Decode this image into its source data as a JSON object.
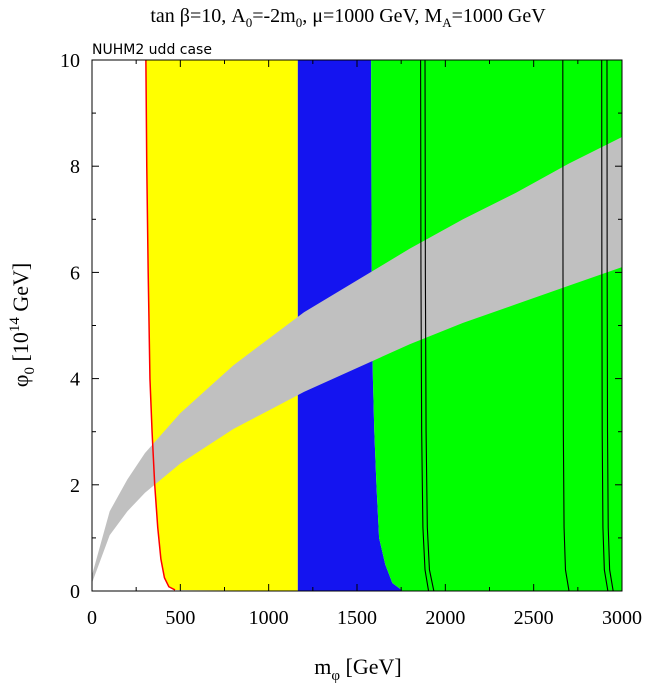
{
  "chart_data": {
    "type": "area",
    "title": "tan β=10, A0=-2m0, μ=1000 GeV, MA=1000 GeV",
    "title_parts": {
      "tan": "tan ",
      "beta": "β",
      "a0_lead": "=10, A",
      "a0_sub": "0",
      "a0_val": "=-2m",
      "m0_sub": "0",
      "mu_lead": ", ",
      "mu": "μ",
      "mu_val": "=1000 GeV, M",
      "ma_sub": "A",
      "ma_val": "=1000 GeV"
    },
    "subtitle": "NUHM2 udd case",
    "xlabel": "mφ [GeV]",
    "xlabel_parts": {
      "m": "m",
      "sub": "φ",
      "unit": " [GeV]"
    },
    "ylabel": "φ0 [10^14 GeV]",
    "ylabel_parts": {
      "phi": "φ",
      "sub": "0",
      "pre": " [10",
      "sup": "14",
      "unit": " GeV]"
    },
    "xlim": [
      0,
      3000
    ],
    "ylim": [
      0,
      10
    ],
    "xticks": [
      "0",
      "500",
      "1000",
      "1500",
      "2000",
      "2500",
      "3000"
    ],
    "yticks": [
      "0",
      "2",
      "4",
      "6",
      "8",
      "10"
    ],
    "grid": false,
    "colors": {
      "yellow": "#ffff00",
      "blue": "#1414f0",
      "green": "#00ff00",
      "gray": "#c0c0c0",
      "red": "#ff0000",
      "black": "#000000"
    },
    "regions": [
      {
        "color": "yellow",
        "x_start": 310,
        "x_end": 1165
      },
      {
        "color": "blue",
        "x_start": 1165,
        "x_end": 1580
      },
      {
        "color": "green",
        "x_start": 1580,
        "x_end": 3000
      }
    ],
    "red_contour": [
      [
        305,
        10
      ],
      [
        310,
        8
      ],
      [
        318,
        6
      ],
      [
        328,
        4
      ],
      [
        340,
        3
      ],
      [
        355,
        2
      ],
      [
        372,
        1.2
      ],
      [
        390,
        0.6
      ],
      [
        410,
        0.25
      ],
      [
        435,
        0.08
      ],
      [
        470,
        0.02
      ]
    ],
    "blue_green_boundary": [
      [
        1580,
        10
      ],
      [
        1582,
        7
      ],
      [
        1585,
        5
      ],
      [
        1590,
        4
      ],
      [
        1598,
        3
      ],
      [
        1610,
        2
      ],
      [
        1625,
        1
      ],
      [
        1660,
        0.5
      ],
      [
        1700,
        0.15
      ],
      [
        1760,
        0
      ]
    ],
    "gray_band": {
      "x": [
        0,
        100,
        200,
        300,
        500,
        800,
        1000,
        1200,
        1500,
        1800,
        2100,
        2400,
        2700,
        3000
      ],
      "lower": [
        0.15,
        1.05,
        1.5,
        1.85,
        2.4,
        3.05,
        3.4,
        3.75,
        4.2,
        4.65,
        5.05,
        5.4,
        5.75,
        6.1
      ],
      "upper": [
        0.3,
        1.5,
        2.1,
        2.6,
        3.35,
        4.25,
        4.75,
        5.25,
        5.85,
        6.45,
        7.0,
        7.5,
        8.05,
        8.55
      ]
    },
    "black_contours": [
      [
        [
          1860,
          10
        ],
        [
          1862,
          6
        ],
        [
          1866,
          3
        ],
        [
          1873,
          1.2
        ],
        [
          1885,
          0.4
        ],
        [
          1905,
          0
        ]
      ],
      [
        [
          1885,
          10
        ],
        [
          1887,
          6
        ],
        [
          1891,
          3
        ],
        [
          1898,
          1.2
        ],
        [
          1910,
          0.4
        ],
        [
          1935,
          0
        ]
      ],
      [
        [
          2665,
          10
        ],
        [
          2666,
          6
        ],
        [
          2668,
          3
        ],
        [
          2672,
          1.2
        ],
        [
          2680,
          0.4
        ],
        [
          2700,
          0
        ]
      ],
      [
        [
          2885,
          10
        ],
        [
          2886,
          6
        ],
        [
          2888,
          3
        ],
        [
          2892,
          1.2
        ],
        [
          2900,
          0.4
        ],
        [
          2920,
          0
        ]
      ],
      [
        [
          2915,
          10
        ],
        [
          2916,
          6
        ],
        [
          2918,
          3
        ],
        [
          2922,
          1.2
        ],
        [
          2930,
          0.4
        ],
        [
          2950,
          0
        ]
      ]
    ]
  }
}
